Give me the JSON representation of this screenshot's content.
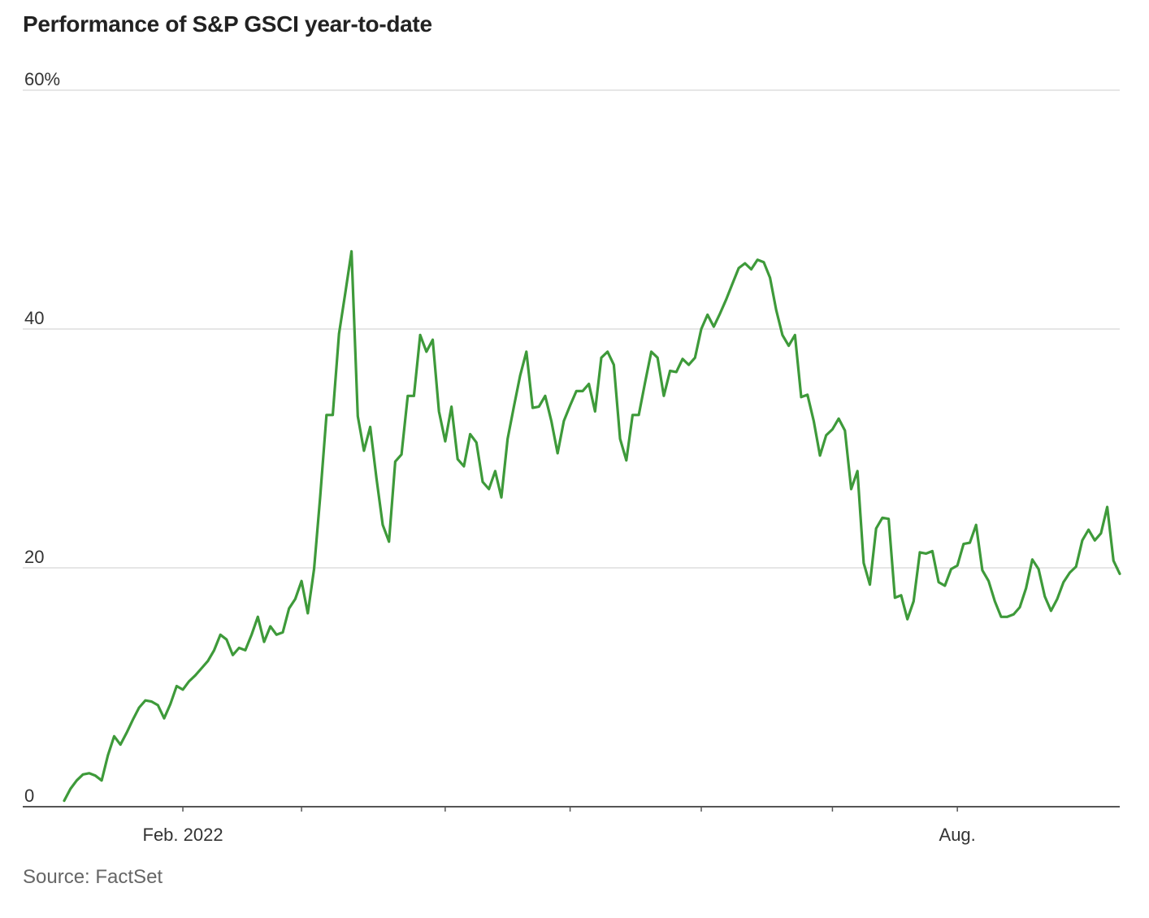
{
  "colors": {
    "line": "#3e9a3a",
    "grid": "#e6e6e6",
    "axis": "#555555",
    "title": "#222222",
    "source": "#666666"
  },
  "source_text": "Source: FactSet",
  "chart_data": {
    "type": "line",
    "title": "Performance of S&P GSCI year-to-date",
    "xlabel": "",
    "ylabel": "",
    "ylim": [
      0,
      60
    ],
    "y_ticks": [
      {
        "value": 0,
        "label": "0"
      },
      {
        "value": 20,
        "label": "20"
      },
      {
        "value": 40,
        "label": "40"
      },
      {
        "value": 60,
        "label": "60%"
      }
    ],
    "x_tick_labels": [
      {
        "index": 19,
        "label": "Feb. 2022"
      },
      {
        "index": 143,
        "label": "Aug."
      }
    ],
    "x_tick_marks": [
      19,
      38,
      61,
      81,
      102,
      123,
      143
    ],
    "grid": true,
    "series": [
      {
        "name": "S&P GSCI",
        "values": [
          0.5,
          1.5,
          2.2,
          2.7,
          2.8,
          2.6,
          2.2,
          4.3,
          5.9,
          5.2,
          6.2,
          7.3,
          8.3,
          8.9,
          8.8,
          8.5,
          7.4,
          8.6,
          10.1,
          9.8,
          10.5,
          11.0,
          11.6,
          12.2,
          13.1,
          14.4,
          14.0,
          12.7,
          13.3,
          13.1,
          14.4,
          15.9,
          13.8,
          15.1,
          14.4,
          14.6,
          16.6,
          17.4,
          18.9,
          16.2,
          19.9,
          26.0,
          32.8,
          32.8,
          39.6,
          43.0,
          46.5,
          32.7,
          29.8,
          31.8,
          27.5,
          23.6,
          22.2,
          28.9,
          29.5,
          34.4,
          34.4,
          39.5,
          38.1,
          39.1,
          33.1,
          30.6,
          33.5,
          29.1,
          28.5,
          31.2,
          30.5,
          27.2,
          26.6,
          28.1,
          25.9,
          30.8,
          33.5,
          36.1,
          38.1,
          33.4,
          33.5,
          34.4,
          32.3,
          29.6,
          32.3,
          33.6,
          34.8,
          34.8,
          35.4,
          33.1,
          37.6,
          38.1,
          37.0,
          30.8,
          29.0,
          32.8,
          32.8,
          35.5,
          38.1,
          37.6,
          34.4,
          36.5,
          36.4,
          37.5,
          37.0,
          37.6,
          40.0,
          41.2,
          40.2,
          41.3,
          42.5,
          43.8,
          45.1,
          45.5,
          45.0,
          45.8,
          45.6,
          44.3,
          41.6,
          39.5,
          38.6,
          39.5,
          34.3,
          34.5,
          32.3,
          29.4,
          31.1,
          31.6,
          32.5,
          31.5,
          26.6,
          28.1,
          20.4,
          18.6,
          23.3,
          24.2,
          24.1,
          17.5,
          17.7,
          15.7,
          17.2,
          21.3,
          21.2,
          21.4,
          18.8,
          18.5,
          19.9,
          20.2,
          22.0,
          22.1,
          23.6,
          19.8,
          18.9,
          17.2,
          15.9,
          15.9,
          16.1,
          16.7,
          18.3,
          20.7,
          19.9,
          17.6,
          16.4,
          17.4,
          18.8,
          19.6,
          20.1,
          22.3,
          23.2,
          22.3,
          22.9,
          25.1,
          20.6,
          19.5
        ]
      }
    ]
  }
}
